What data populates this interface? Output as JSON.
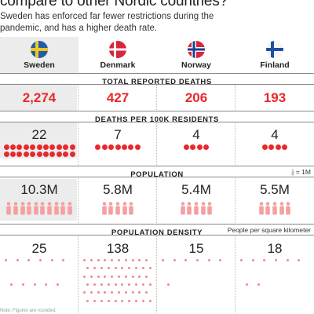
{
  "headline": "compare to other Nordic countries?",
  "subheadline": "Sweden has enforced far fewer restrictions during the pandemic, and has a higher death rate.",
  "countries": [
    {
      "name": "Sweden",
      "flag_icon": "sweden-flag-icon",
      "deaths": "2,274",
      "deaths_per_100k": "22",
      "deaths_per_100k_value": 22,
      "population": "10.3M",
      "population_value": 10.3,
      "density": "25",
      "density_value": 25
    },
    {
      "name": "Denmark",
      "flag_icon": "denmark-flag-icon",
      "deaths": "427",
      "deaths_per_100k": "7",
      "deaths_per_100k_value": 7,
      "population": "5.8M",
      "population_value": 5.8,
      "density": "138",
      "density_value": 138
    },
    {
      "name": "Norway",
      "flag_icon": "norway-flag-icon",
      "deaths": "206",
      "deaths_per_100k": "4",
      "deaths_per_100k_value": 4,
      "population": "5.4M",
      "population_value": 5.4,
      "density": "15",
      "density_value": 15
    },
    {
      "name": "Finland",
      "flag_icon": "finland-flag-icon",
      "deaths": "193",
      "deaths_per_100k": "4",
      "deaths_per_100k_value": 4,
      "population": "5.5M",
      "population_value": 5.5,
      "density": "18",
      "density_value": 18
    }
  ],
  "sections": {
    "total_deaths": "TOTAL REPORTED DEATHS",
    "deaths_per_100k": "DEATHS PER 100K RESIDENTS",
    "population": "POPULATION",
    "population_legend": "= 1M",
    "population_density": "POPULATION DENSITY",
    "density_note": "People per square kilometer"
  },
  "footnote": "Note: Figures are rounded.",
  "colors": {
    "accent_red": "#e8292c",
    "person_pink": "#f4a0a0",
    "density_dot": "#f08a8a",
    "highlight_gray": "#ececec"
  }
}
